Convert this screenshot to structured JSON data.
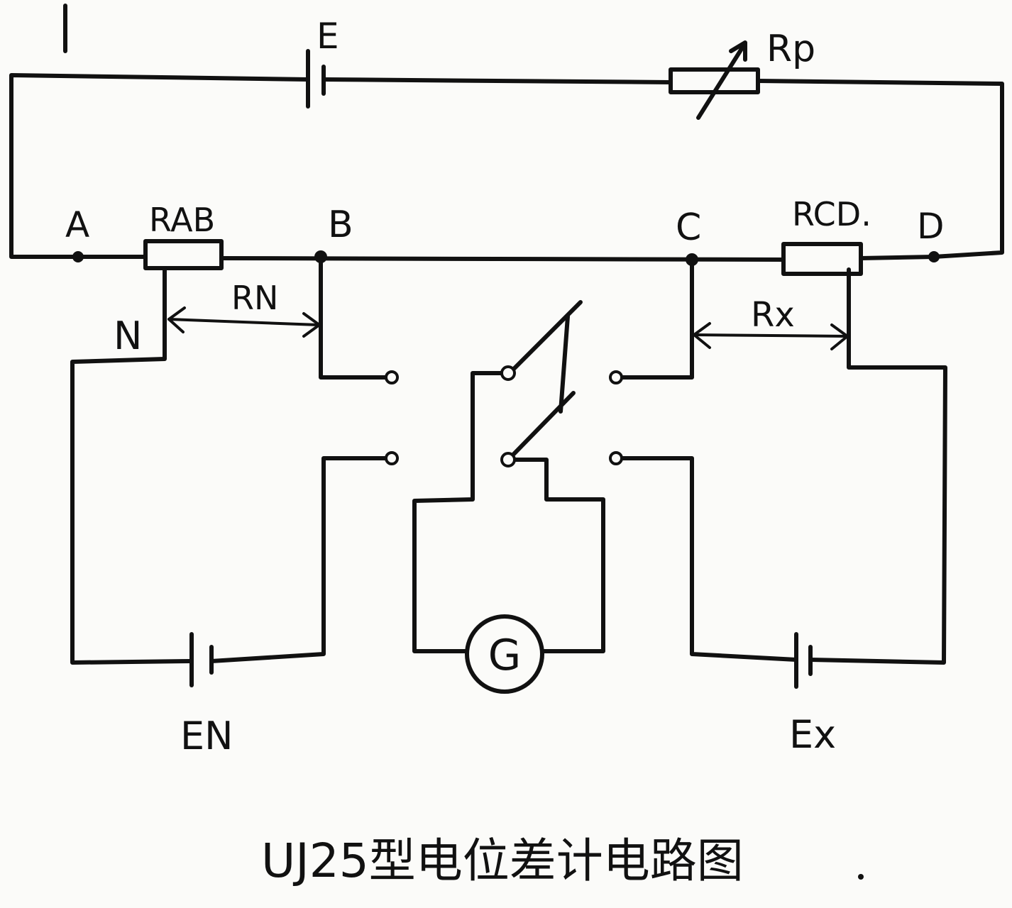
{
  "labels": {
    "E": "E",
    "Rp": "Rp",
    "A": "A",
    "Rab": "RAB",
    "B": "B",
    "C": "C",
    "Rcd": "RCD.",
    "D": "D",
    "N": "N",
    "Rn": "RN",
    "Rx": "Rx",
    "G": "G",
    "En": "EN",
    "Ex": "Ex"
  },
  "caption": "UJ25型电位差计电路图",
  "colors": {
    "ink": "#111111",
    "paper": "#fbfbf9"
  }
}
